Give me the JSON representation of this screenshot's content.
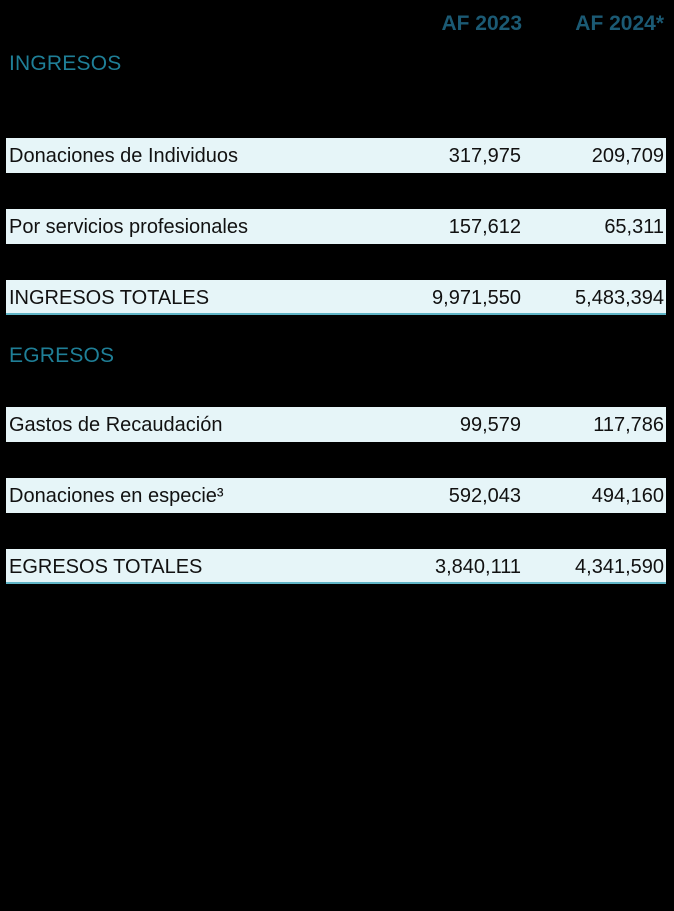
{
  "columns": {
    "year_1": "AF 2023",
    "year_2": "AF 2024*"
  },
  "ingresos": {
    "title": "INGRESOS",
    "rows": [
      {
        "label": "Donaciones de Individuos",
        "v1": "317,975",
        "v2": "209,709"
      },
      {
        "label": "Por servicios profesionales",
        "v1": "157,612",
        "v2": "65,311"
      }
    ],
    "total": {
      "label": "INGRESOS TOTALES",
      "v1": "9,971,550",
      "v2": "5,483,394"
    }
  },
  "egresos": {
    "title": "EGRESOS",
    "rows": [
      {
        "label": "Gastos de Recaudación",
        "v1": "99,579",
        "v2": "117,786"
      },
      {
        "label": "Donaciones en especie³",
        "v1": "592,043",
        "v2": "494,160"
      }
    ],
    "total": {
      "label": "EGRESOS TOTALES",
      "v1": "3,840,111",
      "v2": "4,341,590"
    }
  },
  "colors": {
    "background": "#000000",
    "header_text": "#1b5a74",
    "section_title": "#1f7f97",
    "row_background": "#e6f5f8",
    "total_underline": "#5fb4c6"
  }
}
